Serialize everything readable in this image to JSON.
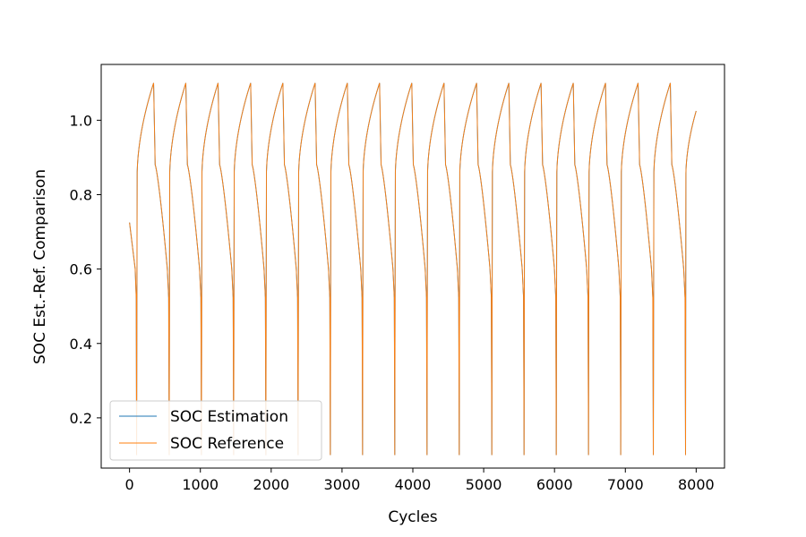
{
  "chart_data": {
    "type": "line",
    "title": "",
    "xlabel": "Cycles",
    "ylabel": "SOC Est.-Ref. Comparison",
    "xlim": [
      -400,
      8400
    ],
    "ylim": [
      0.065,
      1.15
    ],
    "xticks": [
      0,
      1000,
      2000,
      3000,
      4000,
      5000,
      6000,
      7000,
      8000
    ],
    "yticks": [
      0.2,
      0.4,
      0.6,
      0.8,
      1.0
    ],
    "xtick_labels": [
      "0",
      "1000",
      "2000",
      "3000",
      "4000",
      "5000",
      "6000",
      "7000",
      "8000"
    ],
    "ytick_labels": [
      "0.2",
      "0.4",
      "0.6",
      "0.8",
      "1.0"
    ],
    "grid": false,
    "legend_position": "lower-left",
    "start_value": 0.725,
    "peak_value": 1.1,
    "trough_value": 0.1,
    "end_value": 1.025,
    "discharge_starts": [
      0,
      340,
      795,
      1250,
      1710,
      2165,
      2620,
      3075,
      3530,
      3985,
      4440,
      4900,
      5355,
      5810,
      6265,
      6720,
      7180,
      7635
    ],
    "troughs": [
      100,
      560,
      1015,
      1470,
      1925,
      2380,
      2835,
      3290,
      3745,
      4200,
      4655,
      5115,
      5570,
      6025,
      6480,
      6935,
      7395,
      7850
    ],
    "end_cycle": 8000,
    "series": [
      {
        "name": "SOC Estimation",
        "color": "#1f77b4"
      },
      {
        "name": "SOC Reference",
        "color": "#ff7f0e"
      }
    ]
  }
}
